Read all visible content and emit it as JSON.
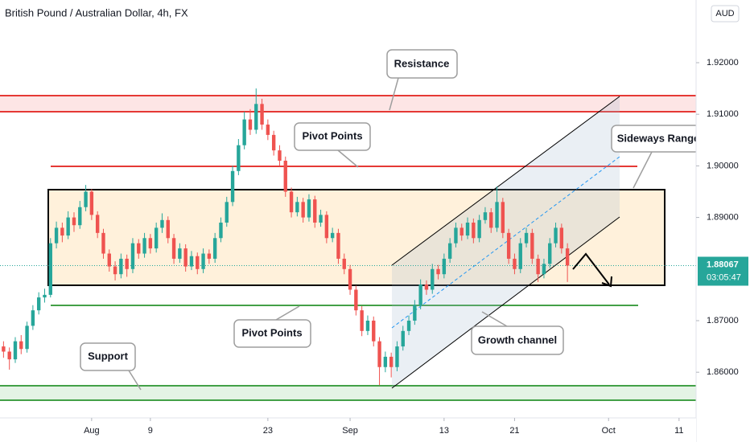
{
  "chart_data": {
    "type": "candlestick",
    "title": "British Pound / Australian Dollar, 4h, FX",
    "currency": "AUD",
    "last_price": 1.88067,
    "countdown": "03:05:47",
    "up_color": "#26a69a",
    "down_color": "#ef5350",
    "annotations": {
      "resistance": "Resistance",
      "pivot_top": "Pivot Points",
      "pivot_bottom": "Pivot Points",
      "sideways": "Sideways Range",
      "support": "Support",
      "channel": "Growth channel"
    },
    "x": [
      -15,
      -14,
      -13,
      -12,
      -11,
      -10,
      -9,
      -8,
      -7,
      -6,
      -5,
      -4,
      -3,
      -2,
      -1,
      0,
      1,
      2,
      3,
      4,
      5,
      6,
      7,
      8,
      9,
      10,
      11,
      12,
      13,
      14,
      15,
      16,
      17,
      18,
      19,
      20,
      21,
      22,
      23,
      24,
      25,
      26,
      27,
      28,
      29,
      30,
      31,
      32,
      33,
      34,
      35,
      36,
      37,
      38,
      39,
      40,
      41,
      42,
      43,
      44,
      45,
      46,
      47,
      48,
      49,
      50,
      51,
      52,
      53,
      54,
      55,
      56,
      57,
      58,
      59,
      60,
      61,
      62,
      63,
      64,
      65,
      66,
      67,
      68,
      69,
      70,
      71,
      72,
      73,
      74,
      75,
      76,
      77,
      78,
      79,
      80,
      81
    ],
    "open": [
      1.865,
      1.864,
      1.8625,
      1.866,
      1.8645,
      1.869,
      1.872,
      1.8745,
      1.875,
      1.885,
      1.888,
      1.8865,
      1.89,
      1.8885,
      1.892,
      1.895,
      1.8905,
      1.887,
      1.883,
      1.8805,
      1.879,
      1.882,
      1.88,
      1.885,
      1.883,
      1.886,
      1.884,
      1.888,
      1.8895,
      1.886,
      1.882,
      1.884,
      1.8805,
      1.8825,
      1.88,
      1.883,
      1.882,
      1.886,
      1.889,
      1.893,
      1.899,
      1.904,
      1.909,
      1.907,
      1.912,
      1.908,
      1.906,
      1.903,
      1.901,
      1.895,
      1.891,
      1.893,
      1.89,
      1.8935,
      1.889,
      1.8905,
      1.886,
      1.887,
      1.882,
      1.88,
      1.876,
      1.872,
      1.868,
      1.87,
      1.866,
      1.861,
      1.863,
      1.861,
      1.865,
      1.868,
      1.87,
      1.873,
      1.877,
      1.876,
      1.88,
      1.879,
      1.882,
      1.885,
      1.888,
      1.8865,
      1.889,
      1.886,
      1.8895,
      1.891,
      1.888,
      1.893,
      1.887,
      1.882,
      1.88,
      1.885,
      1.887,
      1.882,
      1.879,
      1.881,
      1.885,
      1.888,
      1.884
    ],
    "high": [
      1.866,
      1.8648,
      1.8668,
      1.8672,
      1.8698,
      1.873,
      1.8755,
      1.8762,
      1.886,
      1.8892,
      1.889,
      1.8912,
      1.891,
      1.8932,
      1.8963,
      1.8955,
      1.8912,
      1.8878,
      1.8838,
      1.8815,
      1.883,
      1.8828,
      1.886,
      1.8858,
      1.887,
      1.8868,
      1.889,
      1.8908,
      1.8902,
      1.8868,
      1.885,
      1.8848,
      1.8835,
      1.8832,
      1.884,
      1.8838,
      1.887,
      1.89,
      1.894,
      1.9,
      1.9052,
      1.9105,
      1.911,
      1.915,
      1.913,
      1.909,
      1.9068,
      1.904,
      1.9018,
      1.8958,
      1.894,
      1.8938,
      1.8945,
      1.8942,
      1.8915,
      1.8912,
      1.888,
      1.8878,
      1.883,
      1.8808,
      1.8768,
      1.8728,
      1.871,
      1.8708,
      1.8668,
      1.864,
      1.8638,
      1.866,
      1.869,
      1.871,
      1.874,
      1.878,
      1.8778,
      1.881,
      1.8808,
      1.883,
      1.886,
      1.889,
      1.8888,
      1.89,
      1.8898,
      1.8905,
      1.892,
      1.8918,
      1.896,
      1.8938,
      1.8878,
      1.883,
      1.886,
      1.888,
      1.8878,
      1.8828,
      1.882,
      1.886,
      1.889,
      1.8888,
      1.885
    ],
    "low": [
      1.8628,
      1.8605,
      1.8618,
      1.8635,
      1.8638,
      1.8682,
      1.8712,
      1.8735,
      1.8745,
      1.884,
      1.8852,
      1.8858,
      1.8872,
      1.8878,
      1.8912,
      1.8895,
      1.886,
      1.882,
      1.8795,
      1.8778,
      1.8782,
      1.8785,
      1.8792,
      1.882,
      1.8822,
      1.883,
      1.8832,
      1.887,
      1.885,
      1.881,
      1.8812,
      1.8795,
      1.8798,
      1.879,
      1.8792,
      1.881,
      1.8812,
      1.8852,
      1.8882,
      1.8922,
      1.8982,
      1.9032,
      1.906,
      1.9062,
      1.907,
      1.905,
      1.902,
      1.9,
      1.894,
      1.89,
      1.8902,
      1.889,
      1.8892,
      1.888,
      1.8882,
      1.885,
      1.8852,
      1.881,
      1.879,
      1.875,
      1.871,
      1.867,
      1.8672,
      1.865,
      1.8575,
      1.86,
      1.859,
      1.8602,
      1.8642,
      1.8672,
      1.8692,
      1.8722,
      1.875,
      1.8752,
      1.878,
      1.8782,
      1.8812,
      1.8842,
      1.8855,
      1.8858,
      1.885,
      1.8852,
      1.8888,
      1.887,
      1.8872,
      1.886,
      1.881,
      1.879,
      1.8792,
      1.8842,
      1.881,
      1.8775,
      1.8782,
      1.8802,
      1.8842,
      1.883,
      1.8775
    ],
    "close": [
      1.864,
      1.8625,
      1.866,
      1.8645,
      1.869,
      1.872,
      1.8745,
      1.875,
      1.885,
      1.888,
      1.8865,
      1.89,
      1.8885,
      1.892,
      1.895,
      1.8905,
      1.887,
      1.883,
      1.8805,
      1.879,
      1.882,
      1.88,
      1.885,
      1.883,
      1.886,
      1.884,
      1.888,
      1.8895,
      1.886,
      1.882,
      1.884,
      1.8805,
      1.8825,
      1.88,
      1.883,
      1.882,
      1.886,
      1.889,
      1.893,
      1.899,
      1.904,
      1.909,
      1.907,
      1.912,
      1.908,
      1.906,
      1.903,
      1.901,
      1.895,
      1.891,
      1.893,
      1.89,
      1.8935,
      1.889,
      1.8905,
      1.886,
      1.887,
      1.882,
      1.88,
      1.876,
      1.872,
      1.868,
      1.87,
      1.866,
      1.861,
      1.863,
      1.861,
      1.865,
      1.868,
      1.87,
      1.873,
      1.877,
      1.876,
      1.88,
      1.879,
      1.882,
      1.885,
      1.888,
      1.8865,
      1.889,
      1.886,
      1.8895,
      1.891,
      1.888,
      1.893,
      1.887,
      1.882,
      1.88,
      1.885,
      1.887,
      1.882,
      1.879,
      1.881,
      1.885,
      1.888,
      1.884,
      1.88067
    ],
    "xlim": [
      -15.6,
      102.9
    ],
    "xticks": [
      {
        "value": 0,
        "label": "Aug"
      },
      {
        "value": 10,
        "label": "9"
      },
      {
        "value": 30,
        "label": "23"
      },
      {
        "value": 44,
        "label": "Sep"
      },
      {
        "value": 60,
        "label": "13"
      },
      {
        "value": 72,
        "label": "21"
      },
      {
        "value": 88,
        "label": "Oct"
      },
      {
        "value": 100,
        "label": "11"
      }
    ],
    "ylim": [
      1.85115,
      1.93215
    ],
    "yticks": [
      {
        "value": 1.86,
        "label": "1.86000"
      },
      {
        "value": 1.87,
        "label": "1.87000"
      },
      {
        "value": 1.89,
        "label": "1.89000"
      },
      {
        "value": 1.9,
        "label": "1.90000"
      },
      {
        "value": 1.91,
        "label": "1.91000"
      },
      {
        "value": 1.92,
        "label": "1.92000"
      }
    ],
    "grid": false
  }
}
